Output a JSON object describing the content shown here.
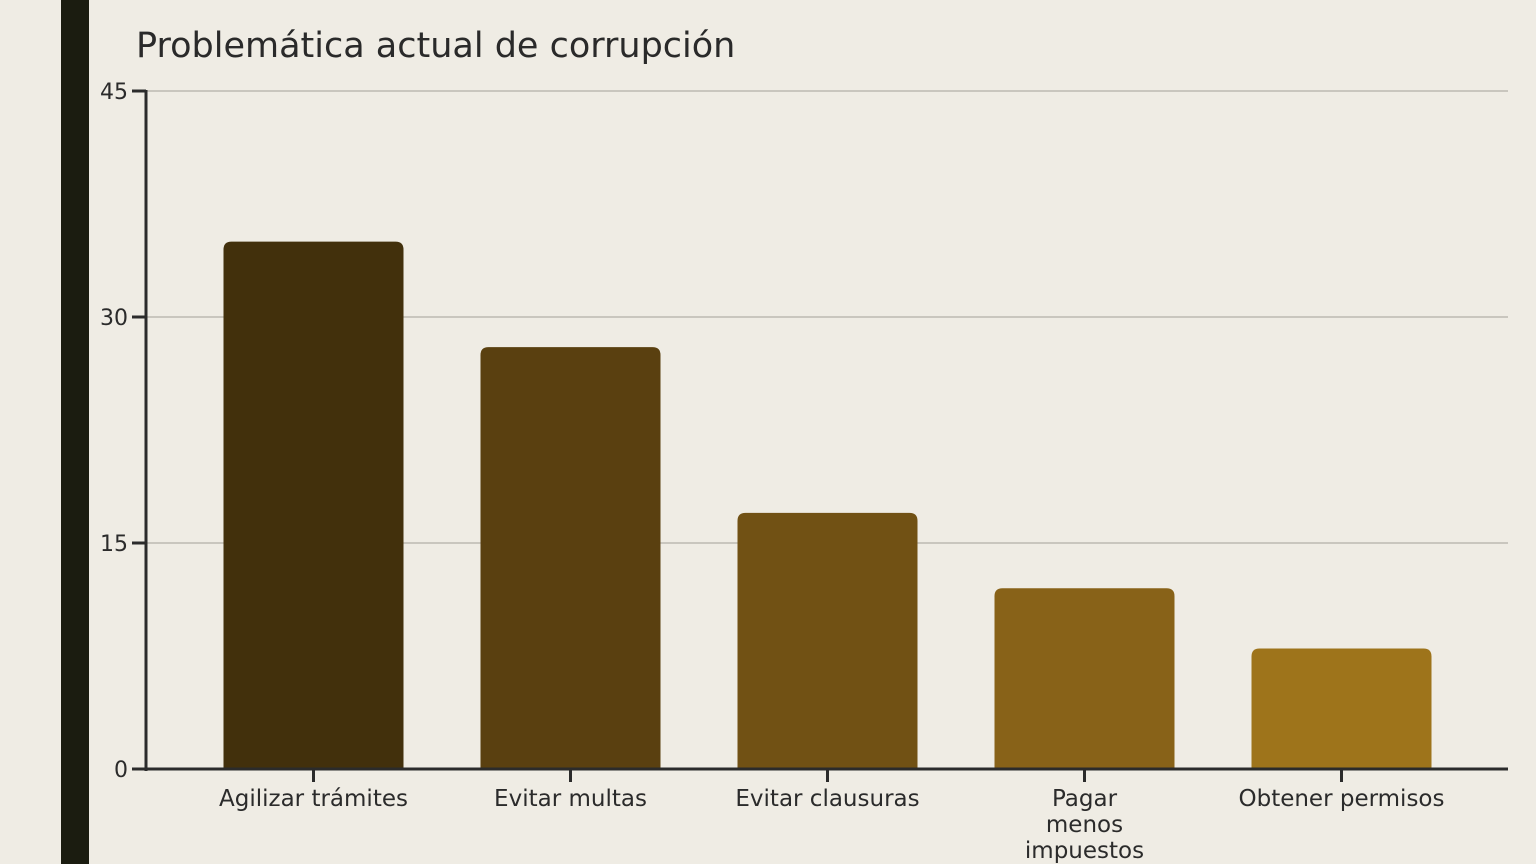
{
  "chart_data": {
    "type": "bar",
    "title": "Problemática actual de corrupción",
    "xlabel": "",
    "ylabel": "",
    "categories": [
      "Agilizar trámites",
      "Evitar multas",
      "Evitar clausuras",
      "Pagar menos impuestos",
      "Obtener permisos"
    ],
    "category_label_lines": [
      [
        "Agilizar trámites"
      ],
      [
        "Evitar multas"
      ],
      [
        "Evitar clausuras"
      ],
      [
        "Pagar",
        "menos",
        "impuestos"
      ],
      [
        "Obtener permisos"
      ]
    ],
    "values": [
      35,
      28,
      17,
      12,
      8
    ],
    "ylim": [
      0,
      45
    ],
    "yticks": [
      0,
      15,
      30,
      45
    ],
    "grid": true,
    "legend": "none",
    "bar_colors": [
      "#42300c",
      "#5a4010",
      "#715114",
      "#886218",
      "#9e741b"
    ],
    "colors": {
      "background": "#efece4",
      "stripe": "#1b1c10",
      "axis": "#2b2b2b",
      "grid": "#c9c6be"
    }
  }
}
